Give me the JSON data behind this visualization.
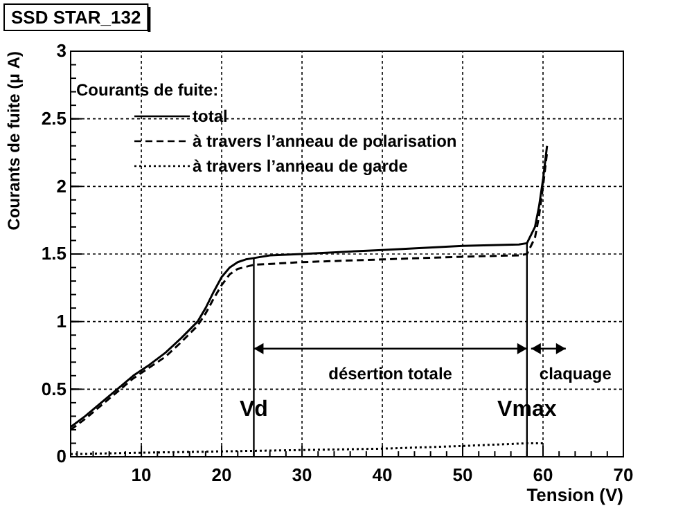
{
  "chart_data": {
    "type": "line",
    "title": "SSD STAR_132",
    "xlabel": "Tension (V)",
    "ylabel": "Courants de fuite (μ A)",
    "legend_title": "Courants de fuite:",
    "legend": "top left",
    "grid": true,
    "xlim": [
      1.2,
      70
    ],
    "xticks": [
      10,
      20,
      30,
      40,
      50,
      60,
      70
    ],
    "ylim": [
      0,
      3
    ],
    "yticks": [
      0,
      0.5,
      1,
      1.5,
      2,
      2.5,
      3
    ],
    "series": [
      {
        "name": "total",
        "color": "#000000",
        "line_style": "solid",
        "x": [
          1.2,
          3,
          5,
          7,
          9,
          11,
          13,
          15,
          17,
          18,
          19,
          20,
          21,
          22,
          23,
          24,
          26,
          30,
          40,
          50,
          57,
          58,
          59,
          59.5,
          60,
          60.5
        ],
        "values": [
          0.22,
          0.3,
          0.4,
          0.5,
          0.6,
          0.68,
          0.77,
          0.88,
          1.0,
          1.1,
          1.22,
          1.33,
          1.4,
          1.44,
          1.46,
          1.47,
          1.49,
          1.5,
          1.53,
          1.56,
          1.57,
          1.58,
          1.7,
          1.85,
          2.05,
          2.3
        ]
      },
      {
        "name": "à travers l’anneau de polarisation",
        "color": "#000000",
        "line_style": "dashed",
        "x": [
          1.2,
          3,
          5,
          7,
          9,
          11,
          13,
          15,
          17,
          18,
          19,
          20,
          21,
          22,
          24,
          30,
          40,
          50,
          57,
          58,
          59,
          59.5,
          60,
          60.5
        ],
        "values": [
          0.2,
          0.28,
          0.38,
          0.48,
          0.58,
          0.66,
          0.74,
          0.85,
          0.97,
          1.06,
          1.17,
          1.27,
          1.35,
          1.39,
          1.42,
          1.44,
          1.46,
          1.48,
          1.49,
          1.5,
          1.62,
          1.78,
          2.0,
          2.25
        ]
      },
      {
        "name": "à travers l’anneau de garde",
        "color": "#000000",
        "line_style": "dotted",
        "x": [
          1.2,
          10,
          20,
          30,
          40,
          50,
          58,
          60
        ],
        "values": [
          0.02,
          0.03,
          0.04,
          0.05,
          0.06,
          0.08,
          0.1,
          0.1
        ]
      }
    ],
    "ref_lines": [
      {
        "axis": "x",
        "value": 24,
        "label": "Vd"
      },
      {
        "axis": "x",
        "value": 58,
        "label": "Vmax"
      }
    ],
    "annotations": [
      "désertion totale",
      "claquage"
    ]
  }
}
